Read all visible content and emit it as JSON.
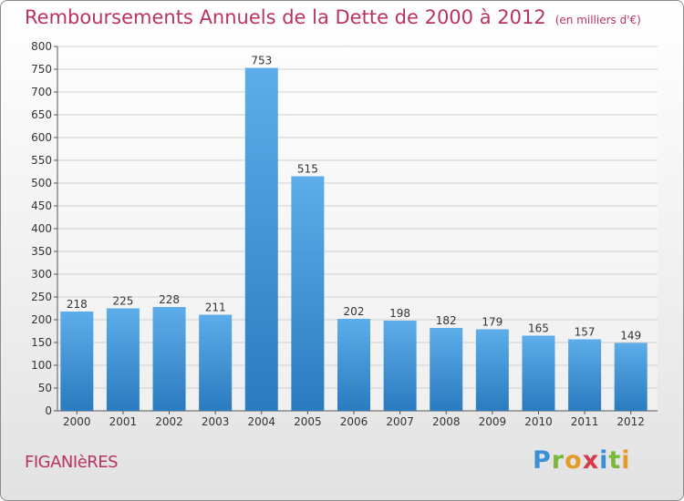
{
  "header": {
    "title": "Remboursements Annuels de la Dette de 2000 à 2012",
    "subtitle": "(en milliers d'€)"
  },
  "commune": "FIGANIèRES",
  "logo": {
    "letters": [
      {
        "ch": "P",
        "color": "#3b8fd6"
      },
      {
        "ch": "r",
        "color": "#7ab83c"
      },
      {
        "ch": "o",
        "color": "#e39b2c"
      },
      {
        "ch": "x",
        "color": "#d43a4a"
      },
      {
        "ch": "i",
        "color": "#3b8fd6"
      },
      {
        "ch": "t",
        "color": "#7ab83c"
      },
      {
        "ch": "i",
        "color": "#e39b2c"
      }
    ]
  },
  "colors": {
    "accent": "#b8345e",
    "bar_top": "#5dadea",
    "bar_bottom": "#2a7bbf"
  },
  "chart_data": {
    "type": "bar",
    "categories": [
      "2000",
      "2001",
      "2002",
      "2003",
      "2004",
      "2005",
      "2006",
      "2007",
      "2008",
      "2009",
      "2010",
      "2011",
      "2012"
    ],
    "values": [
      218,
      225,
      228,
      211,
      753,
      515,
      202,
      198,
      182,
      179,
      165,
      157,
      149
    ],
    "ylim": [
      0,
      800
    ],
    "yticks": [
      0,
      50,
      100,
      150,
      200,
      250,
      300,
      350,
      400,
      450,
      500,
      550,
      600,
      650,
      700,
      750,
      800
    ],
    "grid": true,
    "title": "Remboursements Annuels de la Dette de 2000 à 2012",
    "xlabel": "",
    "ylabel": ""
  }
}
